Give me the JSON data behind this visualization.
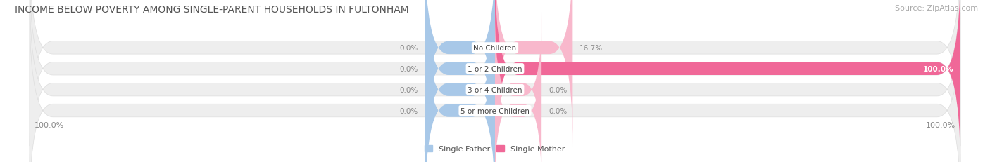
{
  "title": "INCOME BELOW POVERTY AMONG SINGLE-PARENT HOUSEHOLDS IN FULTONHAM",
  "source": "Source: ZipAtlas.com",
  "categories": [
    "No Children",
    "1 or 2 Children",
    "3 or 4 Children",
    "5 or more Children"
  ],
  "single_father": [
    0.0,
    0.0,
    0.0,
    0.0
  ],
  "single_mother": [
    16.7,
    100.0,
    0.0,
    0.0
  ],
  "father_color": "#a8c8e8",
  "mother_color": "#f06898",
  "mother_color_light": "#f8b8cc",
  "bg_row_color": "#eeeeee",
  "bg_row_color2": "#f5f5f5",
  "label_color_dark": "#888888",
  "axis_min": -100,
  "axis_max": 100,
  "legend_father": "Single Father",
  "legend_mother": "Single Mother",
  "title_fontsize": 10,
  "source_fontsize": 8,
  "bar_label_fontsize": 7.5,
  "category_fontsize": 7.5,
  "axis_fontsize": 8,
  "bar_height": 0.62,
  "min_bar_display": 15,
  "zero_mother_display": 10,
  "zero_father_display": 15
}
